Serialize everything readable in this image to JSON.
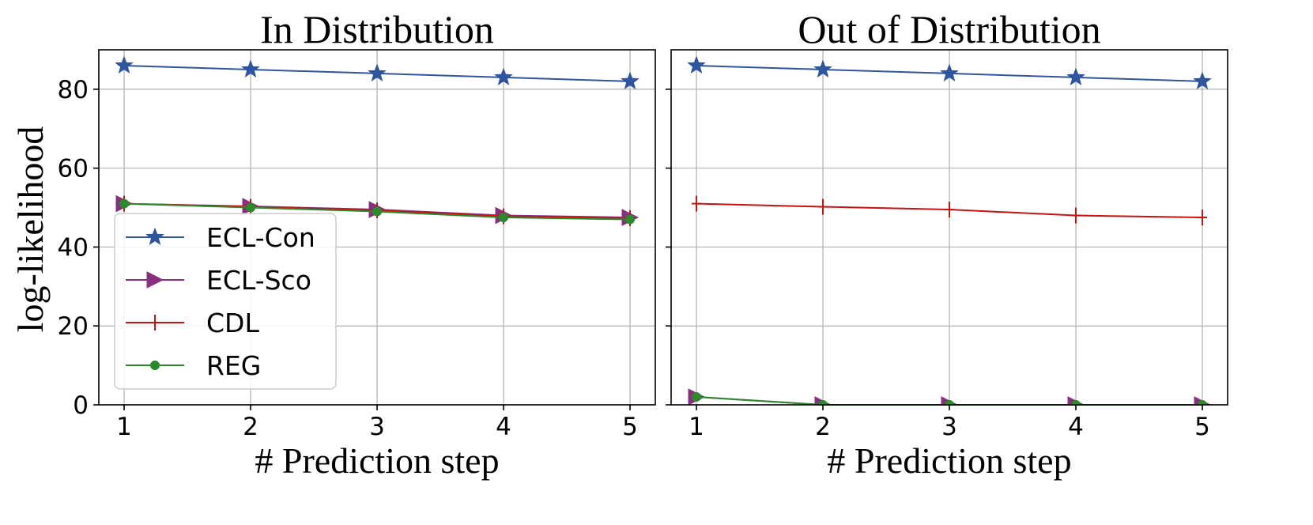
{
  "chart_data": {
    "type": "line",
    "ylabel": "log-likelihood",
    "ylim": [
      0,
      90
    ],
    "yticks": [
      0,
      20,
      40,
      60,
      80
    ],
    "xticks": [
      1,
      2,
      3,
      4,
      5
    ],
    "grid": true,
    "colors": {
      "ECL-Con": "#2f55a0",
      "ECL-Sco": "#8a2f80",
      "CDL": "#cc1111",
      "REG": "#2b8a2b"
    },
    "legend": {
      "placement": "lower-left of first panel",
      "entries": [
        "ECL-Con",
        "ECL-Sco",
        "CDL",
        "REG"
      ]
    },
    "panels": [
      {
        "title": "In Distribution",
        "xlabel": "# Prediction step",
        "x": [
          1,
          2,
          3,
          4,
          5
        ],
        "series": [
          {
            "name": "ECL-Con",
            "marker": "star",
            "values": [
              86,
              85,
              84,
              83,
              82
            ]
          },
          {
            "name": "ECL-Sco",
            "marker": "triangle-right",
            "values": [
              51,
              50.3,
              49.5,
              48,
              47.5
            ]
          },
          {
            "name": "CDL",
            "marker": "plus",
            "values": [
              51,
              50.2,
              49.3,
              47.8,
              47.3
            ]
          },
          {
            "name": "REG",
            "marker": "circle",
            "values": [
              51,
              50,
              49,
              47.5,
              47
            ]
          }
        ]
      },
      {
        "title": "Out of Distribution",
        "xlabel": "# Prediction step",
        "x": [
          1,
          2,
          3,
          4,
          5
        ],
        "series": [
          {
            "name": "ECL-Con",
            "marker": "star",
            "values": [
              86,
              85,
              84,
              83,
              82
            ]
          },
          {
            "name": "ECL-Sco",
            "marker": "triangle-right",
            "values": [
              2,
              0,
              0,
              0,
              0
            ]
          },
          {
            "name": "CDL",
            "marker": "plus",
            "values": [
              51,
              50.2,
              49.5,
              48,
              47.5
            ]
          },
          {
            "name": "REG",
            "marker": "circle",
            "values": [
              2,
              0,
              0,
              0,
              0
            ]
          }
        ]
      }
    ]
  }
}
